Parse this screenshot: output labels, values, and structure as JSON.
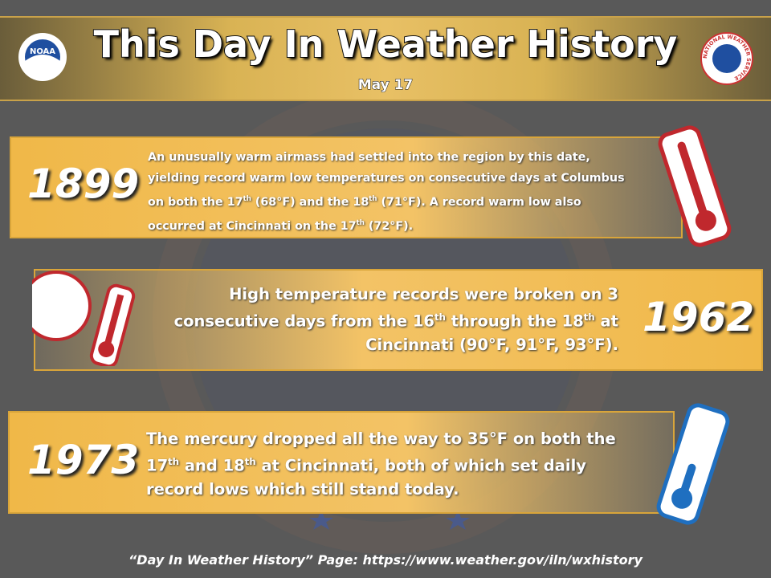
{
  "header": {
    "title": "This Day In Weather History",
    "date": "May 17",
    "logo_left": "NOAA",
    "logo_right": "NATIONAL WEATHER SERVICE"
  },
  "events": [
    {
      "year": "1899",
      "runs": [
        {
          "text": "An unusually  warm airmass had settled into the region by this date, yielding record warm low temperatures on consecutive days at Columbus  on both  the 17",
          "sup": "th"
        },
        {
          "text": " (68°F) and the 18",
          "sup": "th"
        },
        {
          "text": " (71°F). A record warm low also occurred at Cincinnati  on the 17",
          "sup": "th"
        },
        {
          "text": " (72°F)."
        }
      ]
    },
    {
      "year": "1962",
      "runs": [
        {
          "text": "High temperature records were broken on 3 consecutive days from the 16",
          "sup": "th"
        },
        {
          "text": " through the 18",
          "sup": "th"
        },
        {
          "text": " at Cincinnati (90°F, 91°F, 93°F)."
        }
      ]
    },
    {
      "year": "1973",
      "runs": [
        {
          "text": "The mercury dropped all the way to 35°F on both the 17",
          "sup": "th"
        },
        {
          "text": " and 18",
          "sup": "th"
        },
        {
          "text": " at Cincinnati, both of which set daily record lows which still stand today."
        }
      ]
    }
  ],
  "footer": "“Day In Weather History” Page: https://www.weather.gov/iln/wxhistory"
}
